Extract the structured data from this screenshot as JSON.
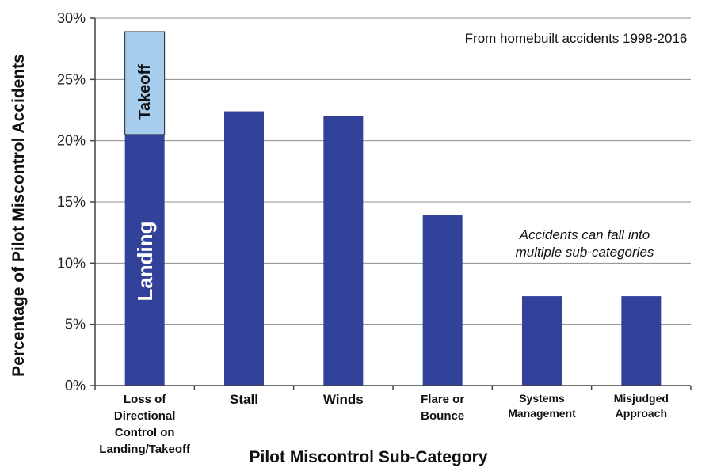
{
  "chart_data": {
    "type": "bar",
    "title": "",
    "xlabel": "Pilot Miscontrol Sub-Category",
    "ylabel": "Percentage of Pilot Miscontrol Accidents",
    "ylim": [
      0,
      30
    ],
    "y_ticks": [
      "0%",
      "5%",
      "10%",
      "15%",
      "20%",
      "25%",
      "30%"
    ],
    "y_tick_values": [
      0,
      5,
      10,
      15,
      20,
      25,
      30
    ],
    "grid": true,
    "categories": [
      [
        "Loss of",
        "Directional",
        "Control on",
        "Landing/Takeoff"
      ],
      [
        "Stall"
      ],
      [
        "Winds"
      ],
      [
        "Flare or",
        "Bounce"
      ],
      [
        "Systems",
        "Management"
      ],
      [
        "Misjudged",
        "Approach"
      ]
    ],
    "series": [
      {
        "name": "Landing",
        "color": "#32419a",
        "values": [
          20.5,
          22.4,
          22.0,
          13.9,
          7.3,
          7.3
        ]
      },
      {
        "name": "Takeoff",
        "color": "#a6cdee",
        "values": [
          8.4,
          0,
          0,
          0,
          0,
          0
        ]
      }
    ],
    "annotations": {
      "source_note": "From homebuilt accidents 1998-2016",
      "multi_note": [
        "Accidents can fall into",
        "multiple sub-categories"
      ]
    }
  }
}
